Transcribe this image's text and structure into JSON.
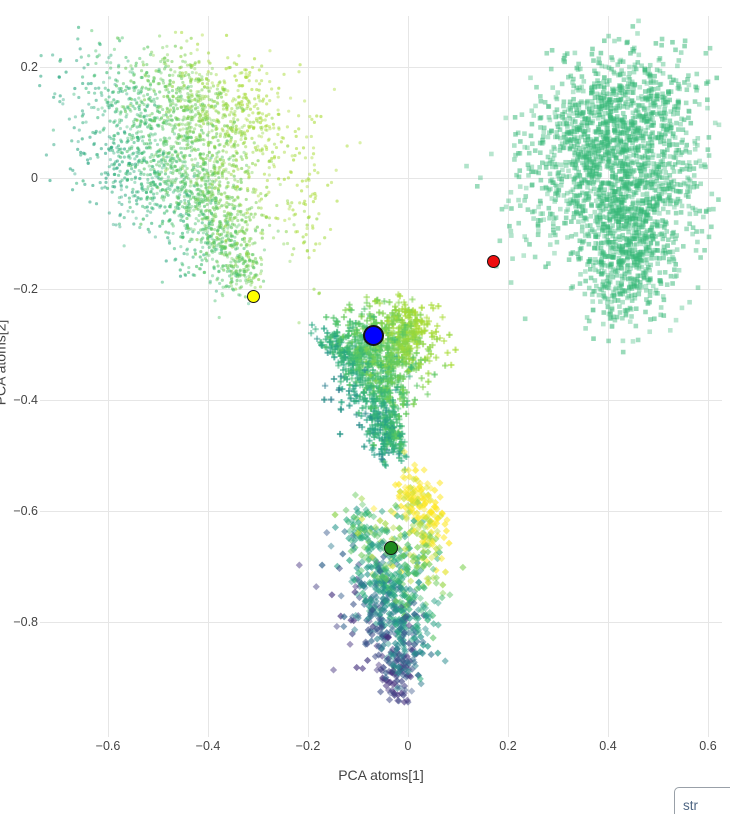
{
  "chart_data": {
    "type": "scatter",
    "title": "",
    "xlabel": "PCA atoms[1]",
    "ylabel": "PCA atoms[2]",
    "x_range": [
      -0.736,
      0.628
    ],
    "y_range": [
      -1.008,
      0.291
    ],
    "grid": true,
    "legend": false,
    "x_ticks": [
      {
        "value": -0.6,
        "label": "−0.6"
      },
      {
        "value": -0.4,
        "label": "−0.4"
      },
      {
        "value": -0.2,
        "label": "−0.2"
      },
      {
        "value": 0,
        "label": "0"
      },
      {
        "value": 0.2,
        "label": "0.2"
      },
      {
        "value": 0.4,
        "label": "0.4"
      },
      {
        "value": 0.6,
        "label": "0.6"
      }
    ],
    "y_ticks": [
      {
        "value": 0.2,
        "label": "0.2"
      },
      {
        "value": 0,
        "label": "0"
      },
      {
        "value": -0.2,
        "label": "−0.2"
      },
      {
        "value": -0.4,
        "label": "−0.4"
      },
      {
        "value": -0.6,
        "label": "−0.6"
      },
      {
        "value": -0.8,
        "label": "−0.8"
      }
    ],
    "clusters": [
      {
        "name": "top-left-blob",
        "marker": "circle",
        "size": 3.2,
        "opacity": 0.5,
        "color_stops": [
          "#26a47f",
          "#35b779",
          "#58c765",
          "#85d349",
          "#a8db34"
        ],
        "t_base": 1.634,
        "t_x": 2.6,
        "t_y": 1.2,
        "t_noise": 0.12,
        "lobes": [
          [
            -0.5,
            0.145,
            0.105,
            0.045,
            -10,
            500
          ],
          [
            -0.37,
            0.1,
            0.085,
            0.06,
            -20,
            550
          ],
          [
            -0.5,
            0.02,
            0.09,
            0.05,
            -15,
            550
          ],
          [
            -0.42,
            -0.04,
            0.07,
            0.045,
            -25,
            450
          ],
          [
            -0.37,
            -0.11,
            0.04,
            0.04,
            -40,
            280
          ],
          [
            -0.335,
            -0.17,
            0.02,
            0.022,
            -45,
            120
          ],
          [
            -0.205,
            -0.05,
            0.022,
            0.08,
            0,
            70
          ]
        ]
      },
      {
        "name": "right-blob",
        "marker": "square",
        "size": 4.6,
        "opacity": 0.45,
        "color_stops": [
          "#38b878"
        ],
        "t_base": 0.5,
        "t_x": 0,
        "t_y": 0,
        "t_noise": 0.05,
        "lobes": [
          [
            0.44,
            0.12,
            0.075,
            0.055,
            0,
            600
          ],
          [
            0.47,
            -0.01,
            0.06,
            0.06,
            0,
            600
          ],
          [
            0.44,
            -0.13,
            0.05,
            0.055,
            0,
            500
          ],
          [
            0.35,
            0.03,
            0.05,
            0.07,
            0,
            400
          ],
          [
            0.25,
            -0.02,
            0.045,
            0.09,
            0,
            90
          ],
          [
            0.42,
            -0.22,
            0.03,
            0.03,
            0,
            80
          ]
        ]
      },
      {
        "name": "middle-blob",
        "marker": "cross",
        "size": 6.4,
        "opacity": 0.6,
        "color_stops": [
          "#2c7f8e",
          "#25a584",
          "#46c06b",
          "#7ad151",
          "#a8db34"
        ],
        "t_base": 1.466,
        "t_x": 2.8,
        "t_y": 2.2,
        "t_noise": 0.12,
        "lobes": [
          [
            -0.005,
            -0.265,
            0.033,
            0.022,
            -30,
            170
          ],
          [
            -0.05,
            -0.3,
            0.05,
            0.028,
            -20,
            260
          ],
          [
            -0.125,
            -0.305,
            0.028,
            0.016,
            -15,
            110
          ],
          [
            -0.065,
            -0.365,
            0.038,
            0.035,
            0,
            300
          ],
          [
            -0.05,
            -0.44,
            0.02,
            0.032,
            0,
            160
          ],
          [
            -0.028,
            -0.475,
            0.013,
            0.016,
            0,
            70
          ]
        ]
      },
      {
        "name": "bottom-blob",
        "marker": "diamond",
        "size": 7.2,
        "opacity": 0.55,
        "color_stops": [
          "#46327e",
          "#365c8d",
          "#21918c",
          "#2db27d",
          "#7ad151",
          "#fde725"
        ],
        "t_base": 2.5,
        "t_x": 2.6,
        "t_y": 2.6,
        "t_noise": 0.15,
        "lobes": [
          [
            0.012,
            -0.575,
            0.022,
            0.025,
            0,
            90
          ],
          [
            0.043,
            -0.635,
            0.018,
            0.03,
            0,
            90
          ],
          [
            -0.085,
            -0.63,
            0.032,
            0.022,
            0,
            60
          ],
          [
            -0.032,
            -0.71,
            0.05,
            0.038,
            0,
            280
          ],
          [
            -0.028,
            -0.8,
            0.046,
            0.042,
            0,
            300
          ],
          [
            -0.022,
            -0.895,
            0.02,
            0.028,
            0,
            100
          ]
        ]
      }
    ],
    "highlight_points": [
      {
        "name": "yellow",
        "x": -0.31,
        "y": -0.215,
        "color": "#ffff00",
        "diameter": 13,
        "border": 1.5
      },
      {
        "name": "blue",
        "x": -0.07,
        "y": -0.285,
        "color": "#0000ff",
        "diameter": 21,
        "border": 2.5
      },
      {
        "name": "red",
        "x": 0.17,
        "y": -0.152,
        "color": "#ed0e0e",
        "diameter": 13,
        "border": 1.5
      },
      {
        "name": "green",
        "x": -0.034,
        "y": -0.667,
        "color": "#1f8b1f",
        "diameter": 14,
        "border": 1.5
      }
    ]
  },
  "ui": {
    "corner_input_value": "str"
  },
  "colors": {
    "background": "#ffffff",
    "grid": "#e6e6e6",
    "tick_text": "#444444",
    "axis_title_text": "#444444",
    "marker_outline": "#141414",
    "input_border": "#99a0a8",
    "input_text": "#506784"
  }
}
